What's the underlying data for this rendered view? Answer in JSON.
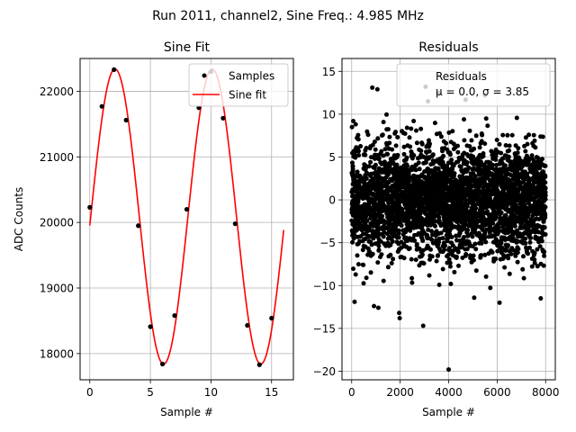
{
  "figure": {
    "suptitle": "Run 2011, channel2, Sine Freq.: 4.985 MHz"
  },
  "colors": {
    "fit": "#ff0000",
    "points": "#000000",
    "grid": "#b0b0b0"
  },
  "chart_data": [
    {
      "type": "scatter+line",
      "title": "Sine Fit",
      "xlabel": "Sample #",
      "ylabel": "ADC Counts",
      "xlim": [
        -0.8,
        16.8
      ],
      "ylim": [
        17600,
        22500
      ],
      "xticks": [
        0,
        5,
        10,
        15
      ],
      "yticks": [
        18000,
        19000,
        20000,
        21000,
        22000
      ],
      "grid": true,
      "legend": {
        "placement": "top-right",
        "entries": [
          "Samples",
          "Sine fit"
        ]
      },
      "samples": {
        "name": "Samples",
        "x": [
          0,
          1,
          2,
          3,
          4,
          5,
          6,
          7,
          8,
          9,
          10,
          11,
          12,
          13,
          14,
          15
        ],
        "y": [
          20230,
          21770,
          22330,
          21560,
          19950,
          18410,
          17840,
          18580,
          20200,
          21750,
          22300,
          21590,
          19980,
          18430,
          17830,
          18540
        ]
      },
      "fit": {
        "name": "Sine fit",
        "model": "sine",
        "offset": 20090,
        "amplitude": 2250,
        "period": 8.02,
        "phase": -0.06,
        "x_range": [
          0,
          16
        ]
      }
    },
    {
      "type": "scatter",
      "title": "Residuals",
      "xlabel": "Sample #",
      "ylabel": "",
      "xlim": [
        -400,
        8400
      ],
      "ylim": [
        -21,
        16.5
      ],
      "xticks": [
        0,
        2000,
        4000,
        6000,
        8000
      ],
      "yticks": [
        -20,
        -15,
        -10,
        -5,
        0,
        5,
        10,
        15
      ],
      "grid": true,
      "legend": {
        "placement": "top-right",
        "entries": [
          "Residuals",
          "μ = 0.0, σ = 3.85"
        ]
      },
      "stats": {
        "n_points": 8000,
        "mean": 0.0,
        "std": 3.85
      },
      "outliers": [
        {
          "x": 4000,
          "y": -19.8
        },
        {
          "x": 2950,
          "y": -14.7
        },
        {
          "x": 1960,
          "y": -13.2
        },
        {
          "x": 1980,
          "y": -13.8
        },
        {
          "x": 920,
          "y": -12.4
        },
        {
          "x": 1100,
          "y": -12.6
        },
        {
          "x": 120,
          "y": -11.9
        },
        {
          "x": 3580,
          "y": 12.5
        },
        {
          "x": 850,
          "y": 13.1
        },
        {
          "x": 1060,
          "y": 12.9
        },
        {
          "x": 3050,
          "y": 13.2
        },
        {
          "x": 3150,
          "y": 11.5
        },
        {
          "x": 4700,
          "y": 11.7
        },
        {
          "x": 5500,
          "y": 12.2
        },
        {
          "x": 6100,
          "y": -12.0
        },
        {
          "x": 7800,
          "y": -11.5
        }
      ]
    }
  ]
}
